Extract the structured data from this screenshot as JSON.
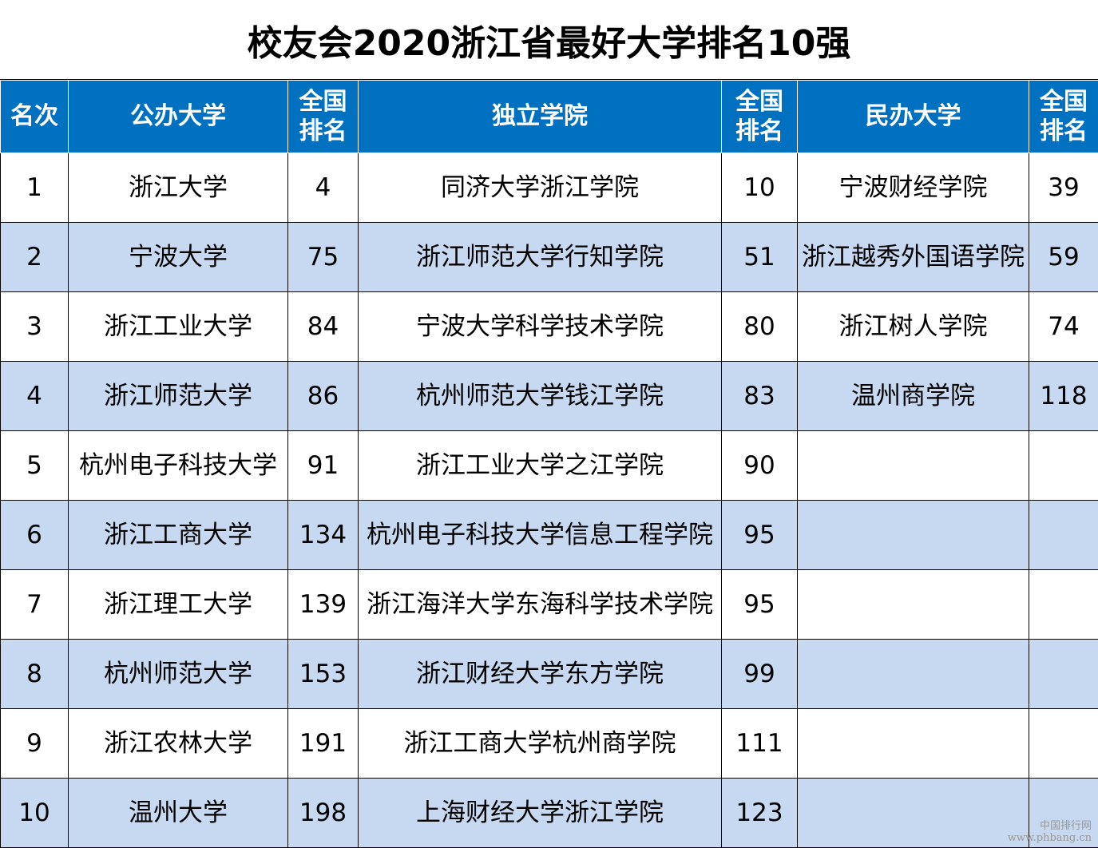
{
  "title": "校友会2020浙江省最好大学排名10强",
  "headers": {
    "rank": "名次",
    "public": "公办大学",
    "public_rank": [
      "全国",
      "排名"
    ],
    "independent": "独立学院",
    "independent_rank": [
      "全国",
      "排名"
    ],
    "private": "民办大学",
    "private_rank": [
      "全国",
      "排名"
    ]
  },
  "rows": [
    {
      "rank": "1",
      "public": "浙江大学",
      "public_rank": "4",
      "independent": "同济大学浙江学院",
      "independent_rank": "10",
      "private": "宁波财经学院",
      "private_rank": "39"
    },
    {
      "rank": "2",
      "public": "宁波大学",
      "public_rank": "75",
      "independent": "浙江师范大学行知学院",
      "independent_rank": "51",
      "private": "浙江越秀外国语学院",
      "private_rank": "59"
    },
    {
      "rank": "3",
      "public": "浙江工业大学",
      "public_rank": "84",
      "independent": "宁波大学科学技术学院",
      "independent_rank": "80",
      "private": "浙江树人学院",
      "private_rank": "74"
    },
    {
      "rank": "4",
      "public": "浙江师范大学",
      "public_rank": "86",
      "independent": "杭州师范大学钱江学院",
      "independent_rank": "83",
      "private": "温州商学院",
      "private_rank": "118"
    },
    {
      "rank": "5",
      "public": "杭州电子科技大学",
      "public_rank": "91",
      "independent": "浙江工业大学之江学院",
      "independent_rank": "90",
      "private": "",
      "private_rank": ""
    },
    {
      "rank": "6",
      "public": "浙江工商大学",
      "public_rank": "134",
      "independent": "杭州电子科技大学信息工程学院",
      "independent_rank": "95",
      "private": "",
      "private_rank": ""
    },
    {
      "rank": "7",
      "public": "浙江理工大学",
      "public_rank": "139",
      "independent": "浙江海洋大学东海科学技术学院",
      "independent_rank": "95",
      "private": "",
      "private_rank": ""
    },
    {
      "rank": "8",
      "public": "杭州师范大学",
      "public_rank": "153",
      "independent": "浙江财经大学东方学院",
      "independent_rank": "99",
      "private": "",
      "private_rank": ""
    },
    {
      "rank": "9",
      "public": "浙江农林大学",
      "public_rank": "191",
      "independent": "浙江工商大学杭州商学院",
      "independent_rank": "111",
      "private": "",
      "private_rank": ""
    },
    {
      "rank": "10",
      "public": "温州大学",
      "public_rank": "198",
      "independent": "上海财经大学浙江学院",
      "independent_rank": "123",
      "private": "",
      "private_rank": ""
    }
  ],
  "watermark": {
    "line1": "中国排行网",
    "line2": "www.phbang.cn"
  },
  "colors": {
    "header_bg": "#0070c0",
    "alt_row_bg": "#c6d9f1"
  }
}
